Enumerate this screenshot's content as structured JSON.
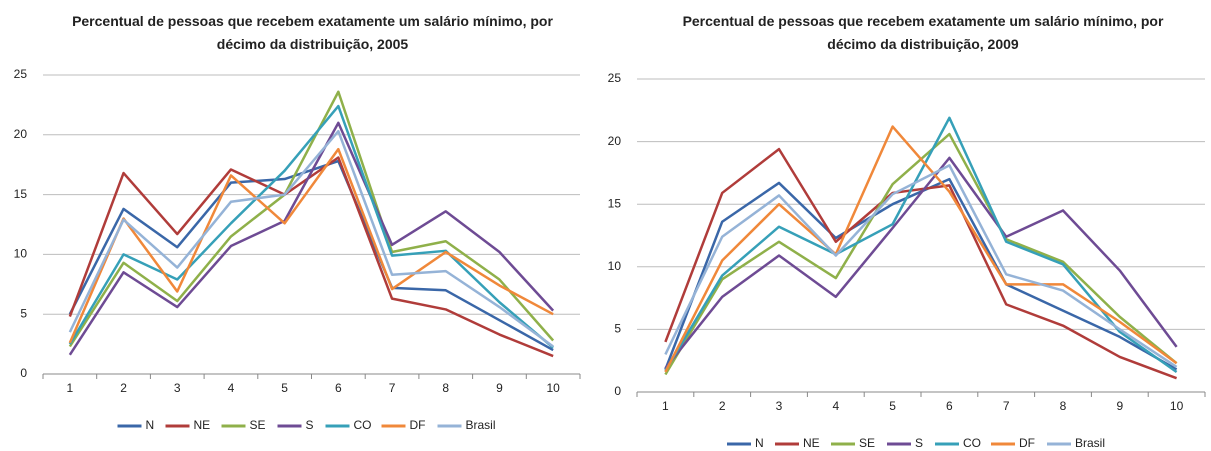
{
  "chart_data": [
    {
      "type": "line",
      "title": "Percentual de pessoas que recebem exatamente um salário mínimo, por décimo da distribuição, 2005",
      "categories": [
        "1",
        "2",
        "3",
        "4",
        "5",
        "6",
        "7",
        "8",
        "9",
        "10"
      ],
      "ylim": [
        0,
        25
      ],
      "yticks": [
        0,
        5,
        10,
        15,
        20,
        25
      ],
      "grid": true,
      "legend": "bottom",
      "series": [
        {
          "name": "N",
          "color": "#3a67a8",
          "values": [
            5.0,
            13.8,
            10.6,
            16.0,
            16.3,
            17.8,
            7.2,
            7.0,
            4.5,
            2.0
          ]
        },
        {
          "name": "NE",
          "color": "#b03c3a",
          "values": [
            4.8,
            16.8,
            11.7,
            17.1,
            15.0,
            18.1,
            6.3,
            5.4,
            3.3,
            1.5
          ]
        },
        {
          "name": "SE",
          "color": "#8fb04a",
          "values": [
            2.3,
            9.3,
            6.1,
            11.5,
            15.0,
            23.6,
            10.2,
            11.1,
            7.9,
            2.8
          ]
        },
        {
          "name": "S",
          "color": "#6e4b94",
          "values": [
            1.6,
            8.5,
            5.6,
            10.7,
            12.8,
            21.0,
            10.8,
            13.6,
            10.2,
            5.3
          ]
        },
        {
          "name": "CO",
          "color": "#36a0b8",
          "values": [
            2.5,
            10.0,
            7.9,
            12.6,
            17.0,
            22.4,
            9.9,
            10.3,
            6.0,
            2.2
          ]
        },
        {
          "name": "DF",
          "color": "#f0883a",
          "values": [
            2.6,
            13.0,
            6.9,
            16.6,
            12.6,
            18.8,
            7.1,
            10.2,
            7.4,
            5.0
          ]
        },
        {
          "name": "Brasil",
          "color": "#95b3d7",
          "values": [
            3.5,
            12.9,
            8.9,
            14.4,
            15.0,
            20.3,
            8.3,
            8.6,
            5.6,
            2.3
          ]
        }
      ]
    },
    {
      "type": "line",
      "title": "Percentual de pessoas que recebem exatamente um salário mínimo, por décimo da distribuição, 2009",
      "categories": [
        "1",
        "2",
        "3",
        "4",
        "5",
        "6",
        "7",
        "8",
        "9",
        "10"
      ],
      "ylim": [
        0,
        25
      ],
      "yticks": [
        0,
        5,
        10,
        15,
        20,
        25
      ],
      "grid": true,
      "legend": "bottom",
      "series": [
        {
          "name": "N",
          "color": "#3a67a8",
          "values": [
            1.8,
            13.6,
            16.7,
            12.3,
            15.0,
            17.0,
            8.6,
            6.5,
            4.4,
            1.8
          ]
        },
        {
          "name": "NE",
          "color": "#b03c3a",
          "values": [
            4.0,
            15.9,
            19.4,
            12.0,
            15.9,
            16.5,
            7.0,
            5.3,
            2.8,
            1.1
          ]
        },
        {
          "name": "SE",
          "color": "#8fb04a",
          "values": [
            1.4,
            9.0,
            12.0,
            9.1,
            16.6,
            20.6,
            12.2,
            10.4,
            6.0,
            2.3
          ]
        },
        {
          "name": "S",
          "color": "#6e4b94",
          "values": [
            1.9,
            7.6,
            10.9,
            7.6,
            13.1,
            18.7,
            12.4,
            14.5,
            9.7,
            3.6
          ]
        },
        {
          "name": "CO",
          "color": "#36a0b8",
          "values": [
            1.7,
            9.3,
            13.2,
            11.0,
            13.4,
            21.9,
            12.0,
            10.2,
            4.8,
            1.6
          ]
        },
        {
          "name": "DF",
          "color": "#f0883a",
          "values": [
            1.6,
            10.5,
            15.0,
            11.0,
            21.2,
            16.0,
            8.6,
            8.6,
            5.6,
            2.3
          ]
        },
        {
          "name": "Brasil",
          "color": "#95b3d7",
          "values": [
            3.0,
            12.4,
            15.7,
            10.9,
            15.8,
            18.1,
            9.4,
            8.1,
            5.0,
            2.0
          ]
        }
      ]
    }
  ]
}
